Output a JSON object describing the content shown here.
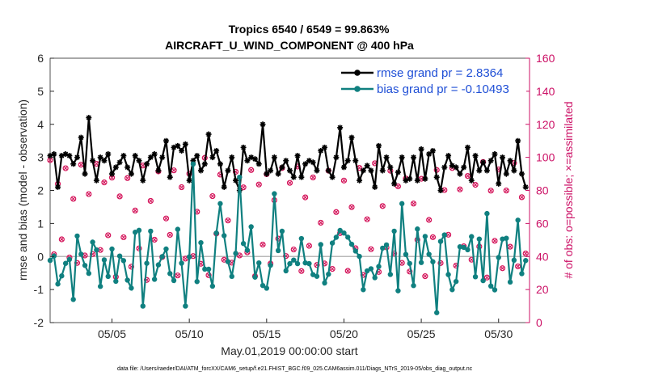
{
  "chart_data": {
    "type": "line",
    "title": "Tropics 6540 / 6549 = 99.863%",
    "subtitle": "AIRCRAFT_U_WIND_COMPONENT @ 400 hPa",
    "xlabel": "May.01,2019 00:00:00 start",
    "ylabel_left": "rmse and bias (model - observation)",
    "ylabel_right": "# of obs: o=possible; ×=assimilated",
    "footnote": "data file: /Users/raeder/DAI/ATM_forcXX/CAM6_setup/f.e21.FHIST_BGC.f09_025.CAM6assim.011/Diags_NTrS_2019-05/obs_diag_output.nc",
    "xlim": [
      1,
      32
    ],
    "ylim_left": [
      -2,
      6
    ],
    "ylim_right": [
      0,
      160
    ],
    "xticks": [
      5,
      10,
      15,
      20,
      25,
      30
    ],
    "xtick_labels": [
      "05/05",
      "05/10",
      "05/15",
      "05/20",
      "05/25",
      "05/30"
    ],
    "yticks_left": [
      -2,
      -1,
      0,
      1,
      2,
      3,
      4,
      5,
      6
    ],
    "yticks_right": [
      0,
      20,
      40,
      60,
      80,
      100,
      120,
      140,
      160
    ],
    "legend": [
      {
        "name": "rmse grand pr = 2.8364",
        "color": "#000000"
      },
      {
        "name": "bias grand pr = -0.10493",
        "color": "#108080"
      }
    ],
    "series": [
      {
        "name": "rmse",
        "color": "#000000",
        "axis": "left",
        "values": [
          3.05,
          3.1,
          2.1,
          3.05,
          3.1,
          3.05,
          2.8,
          3.0,
          3.6,
          2.5,
          4.2,
          2.9,
          2.3,
          3.0,
          2.9,
          3.1,
          2.5,
          2.7,
          2.85,
          3.05,
          2.7,
          2.5,
          3.05,
          2.9,
          2.3,
          2.8,
          3.0,
          3.1,
          2.6,
          3.0,
          3.5,
          2.4,
          3.3,
          3.35,
          3.2,
          3.4,
          2.3,
          2.9,
          3.05,
          2.6,
          2.8,
          3.7,
          3.0,
          3.2,
          2.8,
          2.1,
          2.6,
          3.0,
          2.3,
          2.0,
          3.3,
          2.9,
          3.0,
          2.95,
          2.8,
          4.0,
          2.5,
          2.6,
          3.0,
          2.5,
          2.7,
          2.9,
          2.6,
          2.4,
          3.05,
          2.4,
          2.8,
          2.9,
          2.85,
          2.6,
          3.2,
          3.3,
          2.6,
          2.4,
          3.0,
          3.9,
          2.7,
          2.9,
          3.6,
          2.9,
          2.3,
          2.6,
          2.75,
          2.6,
          2.1,
          3.35,
          2.6,
          3.0,
          2.7,
          2.2,
          2.55,
          3.0,
          2.3,
          2.35,
          3.0,
          2.3,
          3.25,
          2.35,
          3.1,
          3.2,
          2.4,
          2.0,
          2.7,
          3.05,
          2.75,
          2.7,
          2.5,
          2.7,
          3.3,
          2.3,
          3.05,
          2.6,
          2.85,
          2.6,
          2.9,
          3.1,
          2.2,
          3.0,
          2.5,
          2.9,
          2.6,
          3.5,
          2.5,
          2.1,
          3.0,
          2.8,
          3.25,
          2.5,
          3.1,
          3.0,
          2.2,
          2.8,
          3.0,
          2.4,
          3.0,
          2.3,
          2.9,
          3.0,
          2.65,
          2.2,
          2.1,
          3.1,
          2.8,
          2.3,
          2.6,
          2.2,
          2.45,
          2.1,
          3.0,
          2.85,
          2.3,
          2.95,
          2.8,
          3.1,
          2.6,
          2.85,
          2.7,
          2.65,
          2.6,
          2.5,
          2.4,
          2.7,
          2.8,
          2.8,
          1.9,
          2.7,
          3.0,
          2.5,
          2.4,
          2.6,
          2.5,
          2.8,
          3.4,
          2.95,
          3.0,
          2.5,
          2.3,
          2.7,
          2.5,
          2.6,
          2.75,
          2.9,
          2.55,
          2.5,
          2.6,
          2.6,
          2.5,
          2.4,
          2.8,
          2.6,
          2.55,
          2.4,
          2.3,
          2.5,
          2.9,
          2.6,
          3.1,
          2.5,
          2.6,
          2.7,
          2.55,
          2.4,
          2.65,
          2.8,
          2.5,
          2.6,
          2.5,
          2.4,
          2.7,
          2.6,
          2.8,
          2.5,
          3.2,
          2.7,
          3.4,
          3.2,
          3.0,
          3.1,
          2.3,
          2.7,
          2.9,
          3.15,
          2.6,
          2.5,
          2.7,
          3.3,
          2.6,
          2.2,
          3.0,
          2.65,
          2.8,
          2.6,
          2.9,
          2.6,
          2.2,
          3.05,
          2.7,
          2.6,
          2.3,
          3.0,
          2.4,
          2.9,
          3.1,
          2.8,
          3.0,
          2.65,
          2.5,
          2.7,
          2.6,
          3.1
        ]
      }
    ]
  }
}
